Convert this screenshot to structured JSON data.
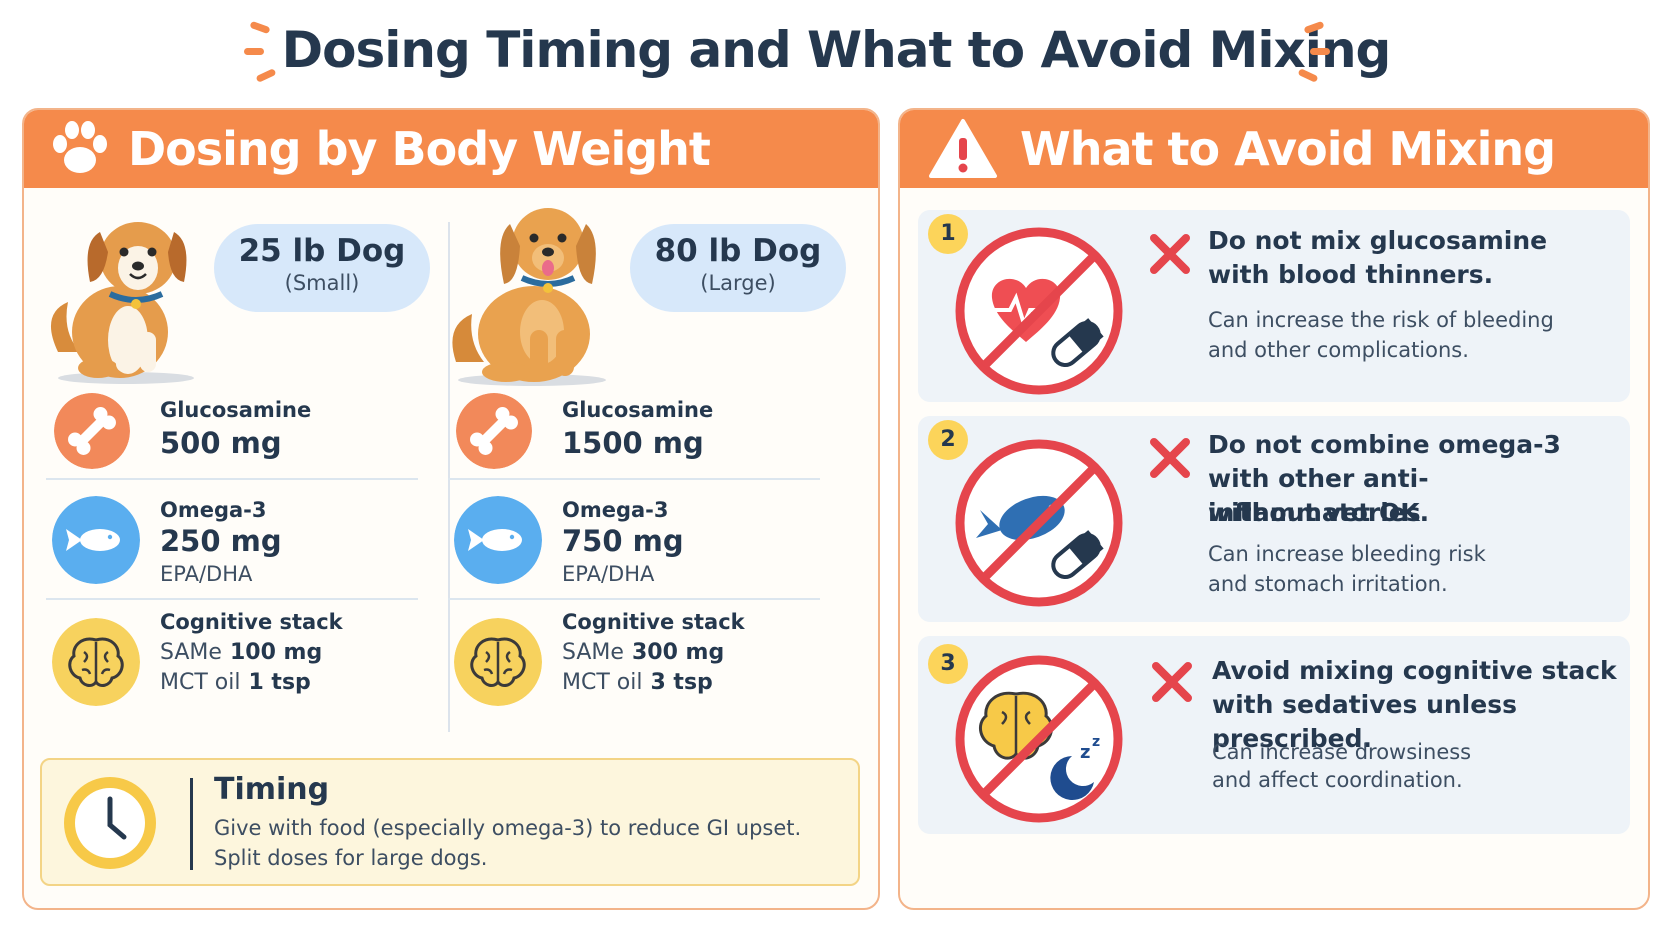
{
  "title": "Dosing Timing and What to Avoid Mixing",
  "left_panel": {
    "heading": "Dosing by Body Weight",
    "heading_icon": "paw-icon",
    "dogs": [
      {
        "weight": "25 lb Dog",
        "size": "(Small)",
        "glucosamine": {
          "name": "Glucosamine",
          "amount": "500 mg",
          "icon": "bone-icon"
        },
        "omega": {
          "name": "Omega-3",
          "amount": "250 mg",
          "note": "EPA/DHA",
          "icon": "fish-icon"
        },
        "cognitive": {
          "name": "Cognitive stack",
          "same_label": "SAMe",
          "same_amount": "100 mg",
          "mct_label": "MCT oil",
          "mct_amount": "1 tsp",
          "icon": "brain-icon"
        }
      },
      {
        "weight": "80 lb Dog",
        "size": "(Large)",
        "glucosamine": {
          "name": "Glucosamine",
          "amount": "1500 mg",
          "icon": "bone-icon"
        },
        "omega": {
          "name": "Omega-3",
          "amount": "750 mg",
          "note": "EPA/DHA",
          "icon": "fish-icon"
        },
        "cognitive": {
          "name": "Cognitive stack",
          "same_label": "SAMe",
          "same_amount": "300 mg",
          "mct_label": "MCT oil",
          "mct_amount": "3 tsp",
          "icon": "brain-icon"
        }
      }
    ],
    "timing": {
      "title": "Timing",
      "line1": "Give with food (especially omega-3) to reduce GI upset.",
      "line2": "Split doses for large dogs.",
      "icon": "clock-icon"
    }
  },
  "right_panel": {
    "heading": "What to Avoid Mixing",
    "heading_icon": "warning-icon",
    "items": [
      {
        "number": "1",
        "title_lines": [
          "Do not mix glucosamine",
          "with blood thinners."
        ],
        "desc_lines": [
          "Can increase the risk of bleeding",
          "and other complications."
        ],
        "icon": "no-heart-pill-icon"
      },
      {
        "number": "2",
        "title_lines": [
          "Do not combine omega-3",
          "with other anti-inflammatories",
          "without vet OK."
        ],
        "desc_lines": [
          "Can increase bleeding risk",
          "and stomach irritation."
        ],
        "icon": "no-fish-pill-icon"
      },
      {
        "number": "3",
        "title_lines": [
          "Avoid mixing cognitive stack",
          "with sedatives unless prescribed."
        ],
        "desc_lines": [
          "Can increase drowsiness",
          "and affect coordination."
        ],
        "icon": "no-brain-sleep-icon"
      }
    ]
  },
  "colors": {
    "accent_orange": "#f58a4b",
    "title_navy": "#25384e",
    "prohibit_red": "#e5454c",
    "pill_blue": "#d7e8fa",
    "badge_yellow": "#fcd45a"
  }
}
